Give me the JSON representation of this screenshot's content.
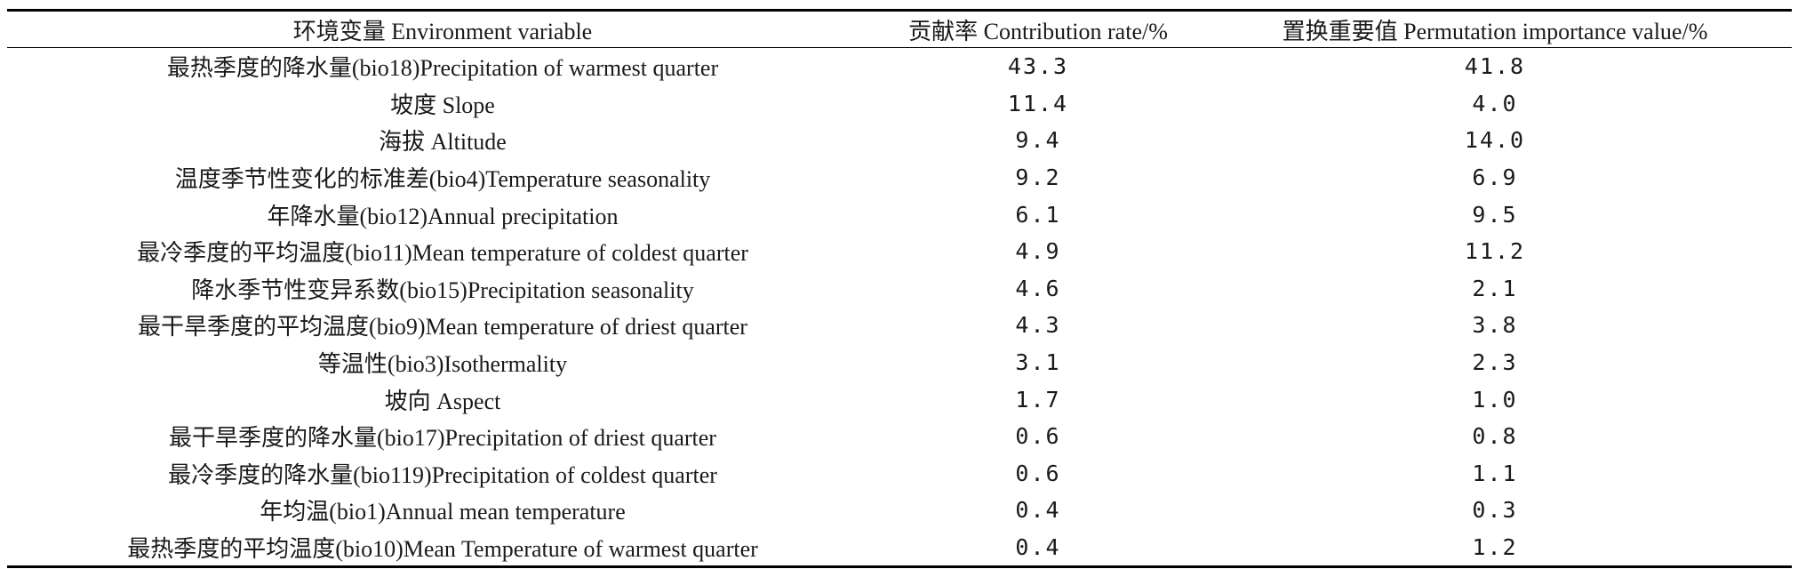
{
  "table": {
    "headers": [
      "环境变量 Environment variable",
      "贡献率 Contribution rate/%",
      "置换重要值 Permutation importance value/%"
    ],
    "rows": [
      {
        "variable": "最热季度的降水量(bio18)Precipitation of warmest quarter",
        "contribution": "43.3",
        "permutation": "41.8"
      },
      {
        "variable": "坡度 Slope",
        "contribution": "11.4",
        "permutation": "4.0"
      },
      {
        "variable": "海拔 Altitude",
        "contribution": "9.4",
        "permutation": "14.0"
      },
      {
        "variable": "温度季节性变化的标准差(bio4)Temperature seasonality",
        "contribution": "9.2",
        "permutation": "6.9"
      },
      {
        "variable": "年降水量(bio12)Annual precipitation",
        "contribution": "6.1",
        "permutation": "9.5"
      },
      {
        "variable": "最冷季度的平均温度(bio11)Mean temperature of coldest quarter",
        "contribution": "4.9",
        "permutation": "11.2"
      },
      {
        "variable": "降水季节性变异系数(bio15)Precipitation seasonality",
        "contribution": "4.6",
        "permutation": "2.1"
      },
      {
        "variable": "最干旱季度的平均温度(bio9)Mean temperature of driest quarter",
        "contribution": "4.3",
        "permutation": "3.8"
      },
      {
        "variable": "等温性(bio3)Isothermality",
        "contribution": "3.1",
        "permutation": "2.3"
      },
      {
        "variable": "坡向 Aspect",
        "contribution": "1.7",
        "permutation": "1.0"
      },
      {
        "variable": "最干旱季度的降水量(bio17)Precipitation of driest quarter",
        "contribution": "0.6",
        "permutation": "0.8"
      },
      {
        "variable": "最冷季度的降水量(bio119)Precipitation of coldest quarter",
        "contribution": "0.6",
        "permutation": "1.1"
      },
      {
        "variable": "年均温(bio1)Annual mean temperature",
        "contribution": "0.4",
        "permutation": "0.3"
      },
      {
        "variable": "最热季度的平均温度(bio10)Mean Temperature of warmest quarter",
        "contribution": "0.4",
        "permutation": "1.2"
      }
    ]
  }
}
